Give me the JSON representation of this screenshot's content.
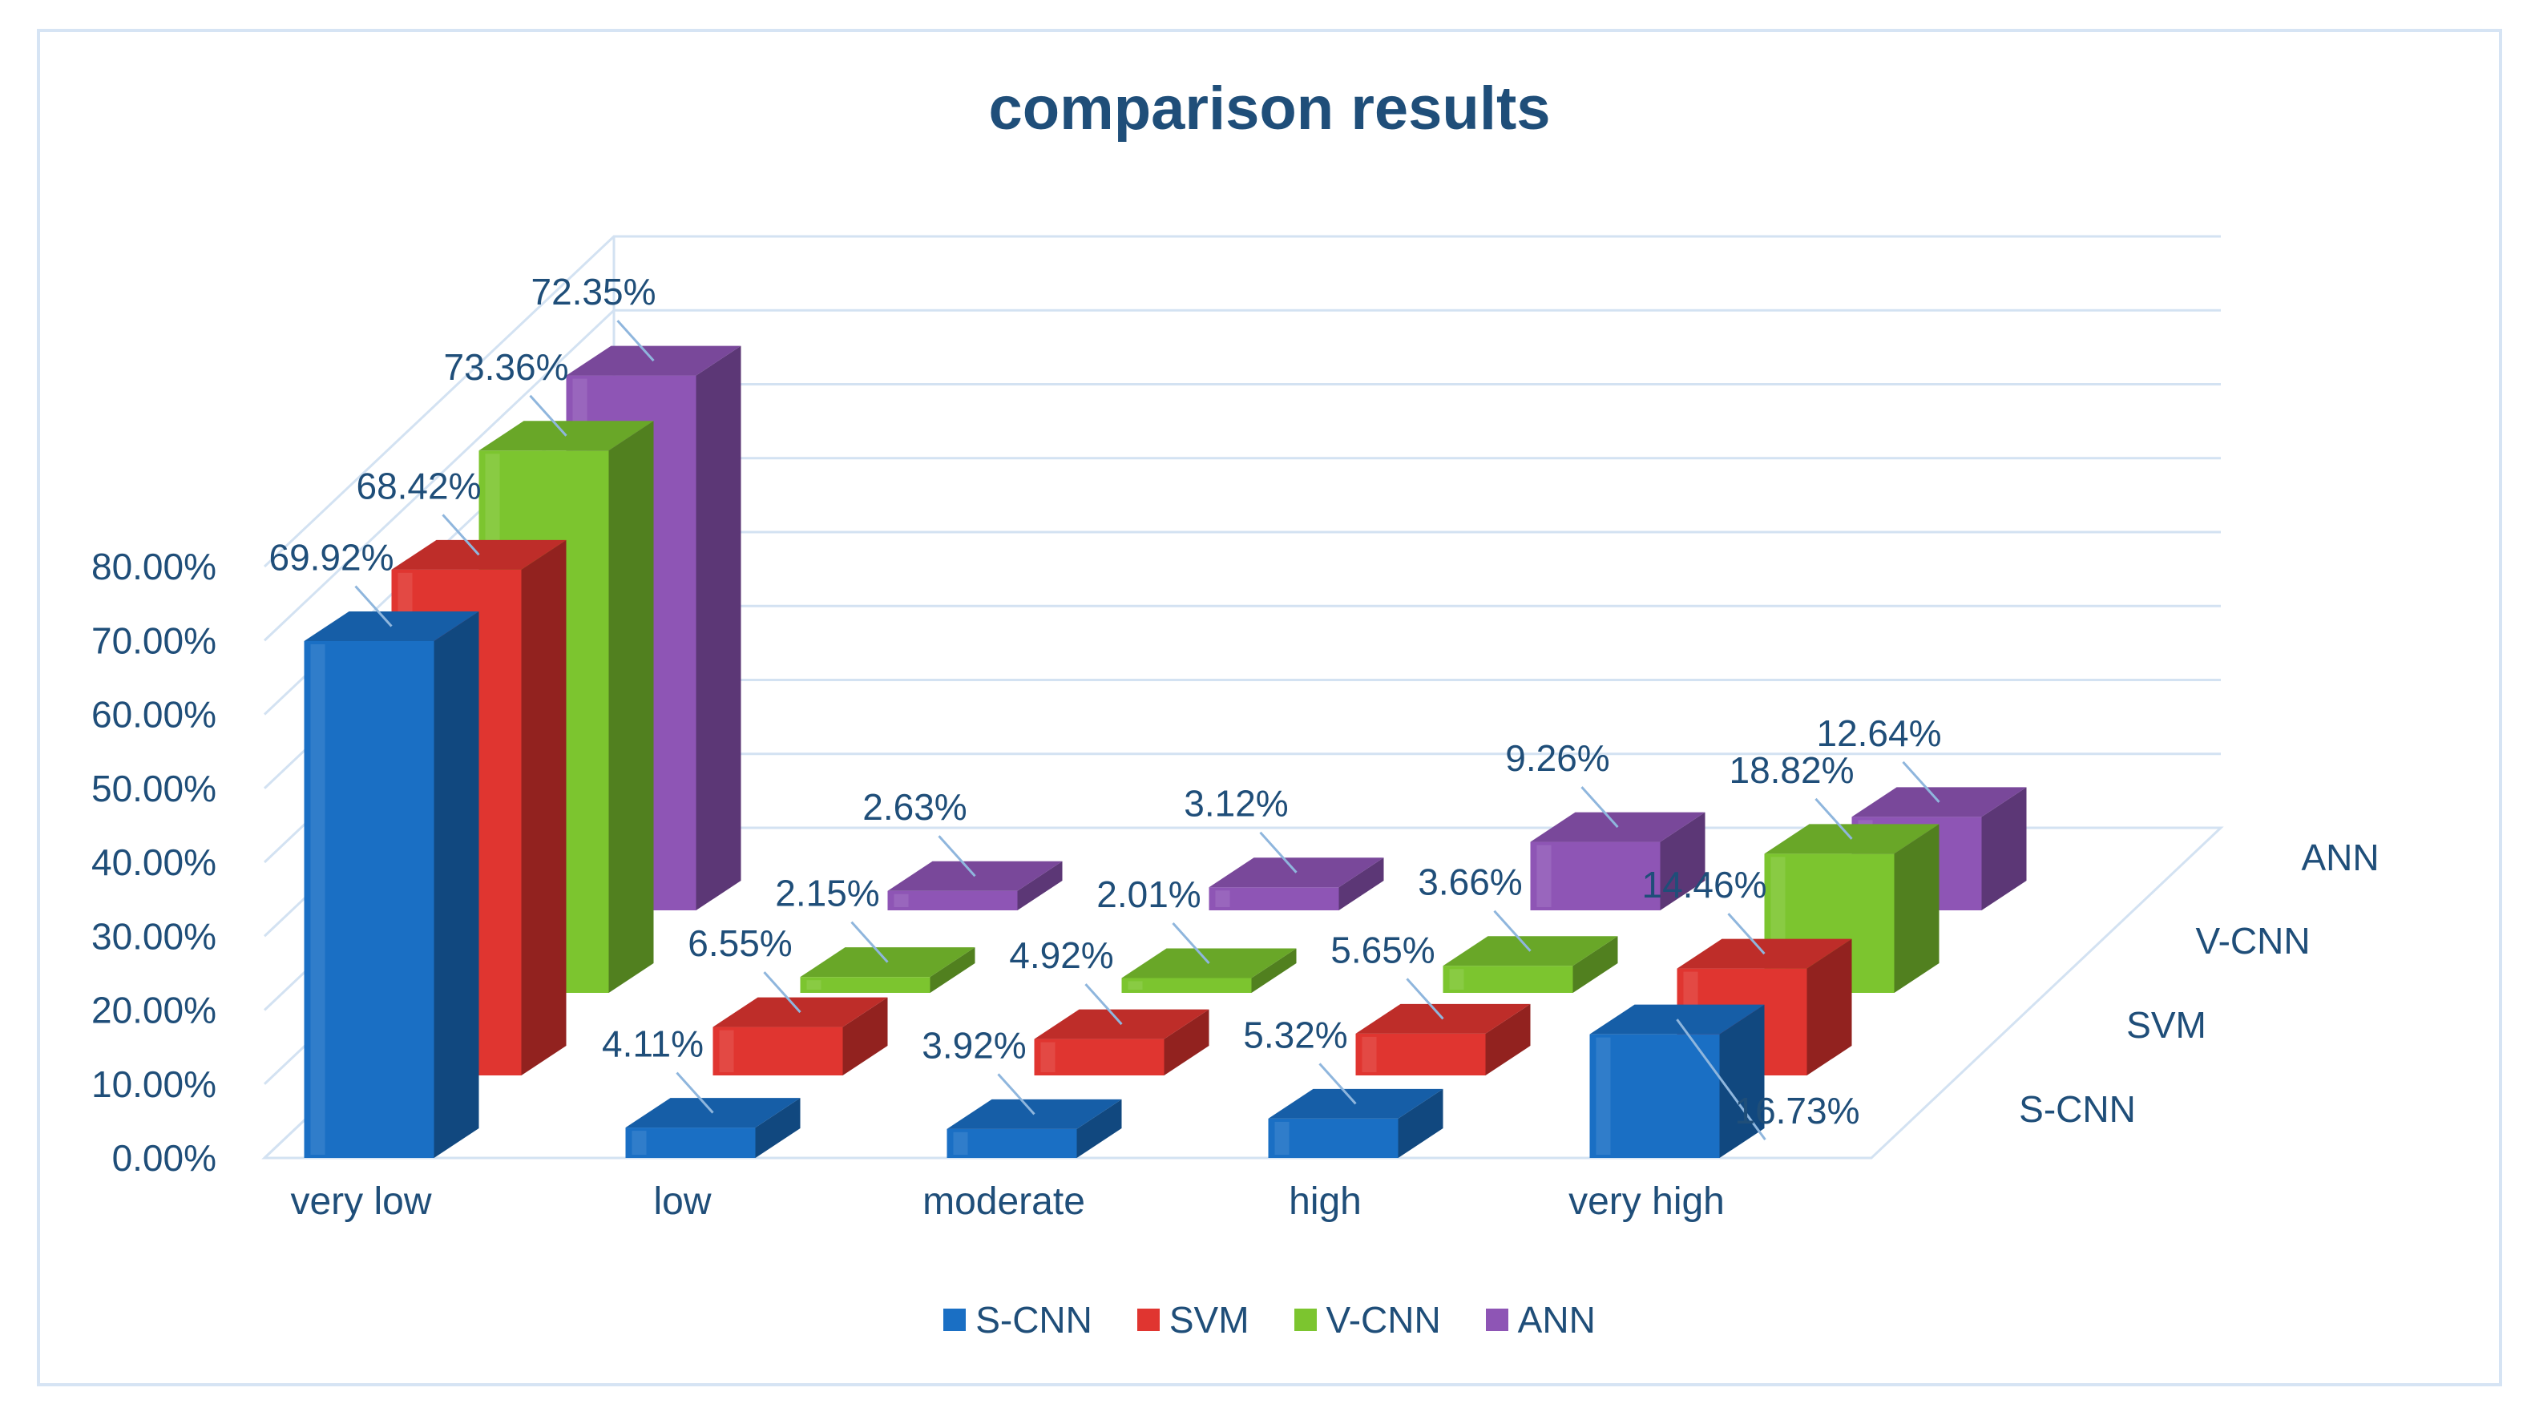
{
  "chart_data": {
    "type": "bar",
    "title": "comparison results",
    "categories": [
      "very low",
      "low",
      "moderate",
      "high",
      "very high"
    ],
    "series": [
      {
        "name": "S-CNN",
        "color": "#1a6fc4",
        "values": [
          69.92,
          4.11,
          3.92,
          5.32,
          16.73
        ],
        "labels": [
          "69.92%",
          "4.11%",
          "3.92%",
          "5.32%",
          "16.73%"
        ]
      },
      {
        "name": "SVM",
        "color": "#e03530",
        "values": [
          68.42,
          6.55,
          4.92,
          5.65,
          14.46
        ],
        "labels": [
          "68.42%",
          "6.55%",
          "4.92%",
          "5.65%",
          "14.46%"
        ]
      },
      {
        "name": "V-CNN",
        "color": "#7cc52f",
        "values": [
          73.36,
          2.15,
          2.01,
          3.66,
          18.82
        ],
        "labels": [
          "73.36%",
          "2.15%",
          "2.01%",
          "3.66%",
          "18.82%"
        ]
      },
      {
        "name": "ANN",
        "color": "#8e55b5",
        "values": [
          72.35,
          2.63,
          3.12,
          9.26,
          12.64
        ],
        "labels": [
          "72.35%",
          "2.63%",
          "3.12%",
          "9.26%",
          "12.64%"
        ]
      }
    ],
    "yticks": [
      "0.00%",
      "10.00%",
      "20.00%",
      "30.00%",
      "40.00%",
      "50.00%",
      "60.00%",
      "70.00%",
      "80.00%"
    ],
    "ylim": [
      0,
      80
    ],
    "depth_labels": [
      "S-CNN",
      "SVM",
      "V-CNN",
      "ANN"
    ],
    "legend_position": "bottom",
    "grid": true
  },
  "legend": [
    {
      "name": "S-CNN",
      "color": "#1a6fc4"
    },
    {
      "name": "SVM",
      "color": "#e03530"
    },
    {
      "name": "V-CNN",
      "color": "#7cc52f"
    },
    {
      "name": "ANN",
      "color": "#8e55b5"
    }
  ]
}
